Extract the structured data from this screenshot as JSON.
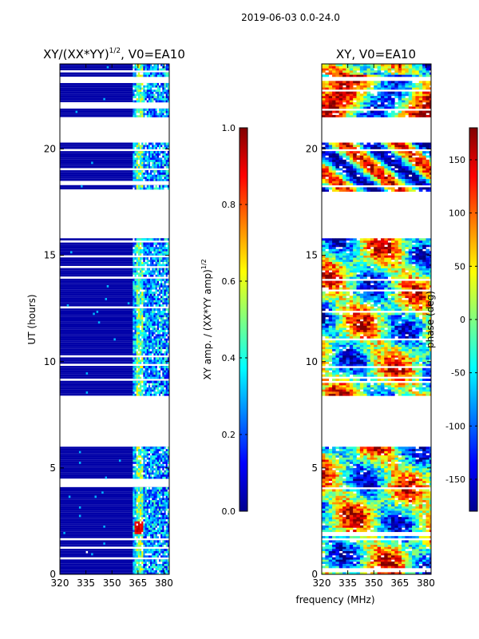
{
  "figure": {
    "suptitle": "2019-06-03 0.0-24.0",
    "shared_xlabel": "frequency (MHz)"
  },
  "chart_data": [
    {
      "type": "heatmap",
      "title": "XY/(XX*YY)^1/2, V0=EA10",
      "title_main": "XY/(XX*YY)",
      "title_exp": "1/2",
      "title_tail": ", V0=EA10",
      "xlabel": "frequency (MHz)",
      "ylabel": "UT (hours)",
      "xlim": [
        320,
        383
      ],
      "ylim": [
        0,
        24
      ],
      "xticks": [
        320,
        335,
        350,
        365,
        380
      ],
      "yticks": [
        0,
        5,
        10,
        15,
        20
      ],
      "colorbar": {
        "label": "XY amp. / (XX*YY amp)^1/2",
        "label_main": "XY amp. / (XX*YY amp)",
        "label_exp": "1/2",
        "range": [
          0.0,
          1.0
        ],
        "ticks": [
          "0.0",
          "0.2",
          "0.4",
          "0.6",
          "0.8",
          "1.0"
        ],
        "colormap": "jet"
      },
      "data_gaps_hours": [
        [
          4.1,
          4.5
        ],
        [
          6.0,
          8.4
        ],
        [
          15.8,
          18.0
        ],
        [
          18.3,
          18.4
        ],
        [
          20.4,
          21.5
        ],
        [
          21.9,
          22.1
        ],
        [
          23.2,
          23.4
        ]
      ],
      "bright_band_mhz": [
        364,
        368
      ],
      "hot_spot": {
        "freq_mhz": [
          363,
          368
        ],
        "ut_hours": [
          1.9,
          2.5
        ],
        "value": 0.85
      }
    },
    {
      "type": "heatmap",
      "title": "XY, V0=EA10",
      "xlabel": "frequency (MHz)",
      "ylabel": "",
      "xlim": [
        320,
        383
      ],
      "ylim": [
        0,
        24
      ],
      "xticks": [
        320,
        335,
        350,
        365,
        380
      ],
      "yticks": [
        0,
        5,
        10,
        15,
        20
      ],
      "colorbar": {
        "label": "phase (deg)",
        "range": [
          -180,
          180
        ],
        "ticks": [
          "-150",
          "-100",
          "-50",
          "0",
          "50",
          "100",
          "150"
        ],
        "colormap": "jet"
      },
      "data_gaps_hours": [
        [
          6.0,
          8.4
        ],
        [
          15.8,
          18.0
        ],
        [
          20.4,
          21.5
        ],
        [
          23.2,
          23.4
        ]
      ]
    }
  ]
}
